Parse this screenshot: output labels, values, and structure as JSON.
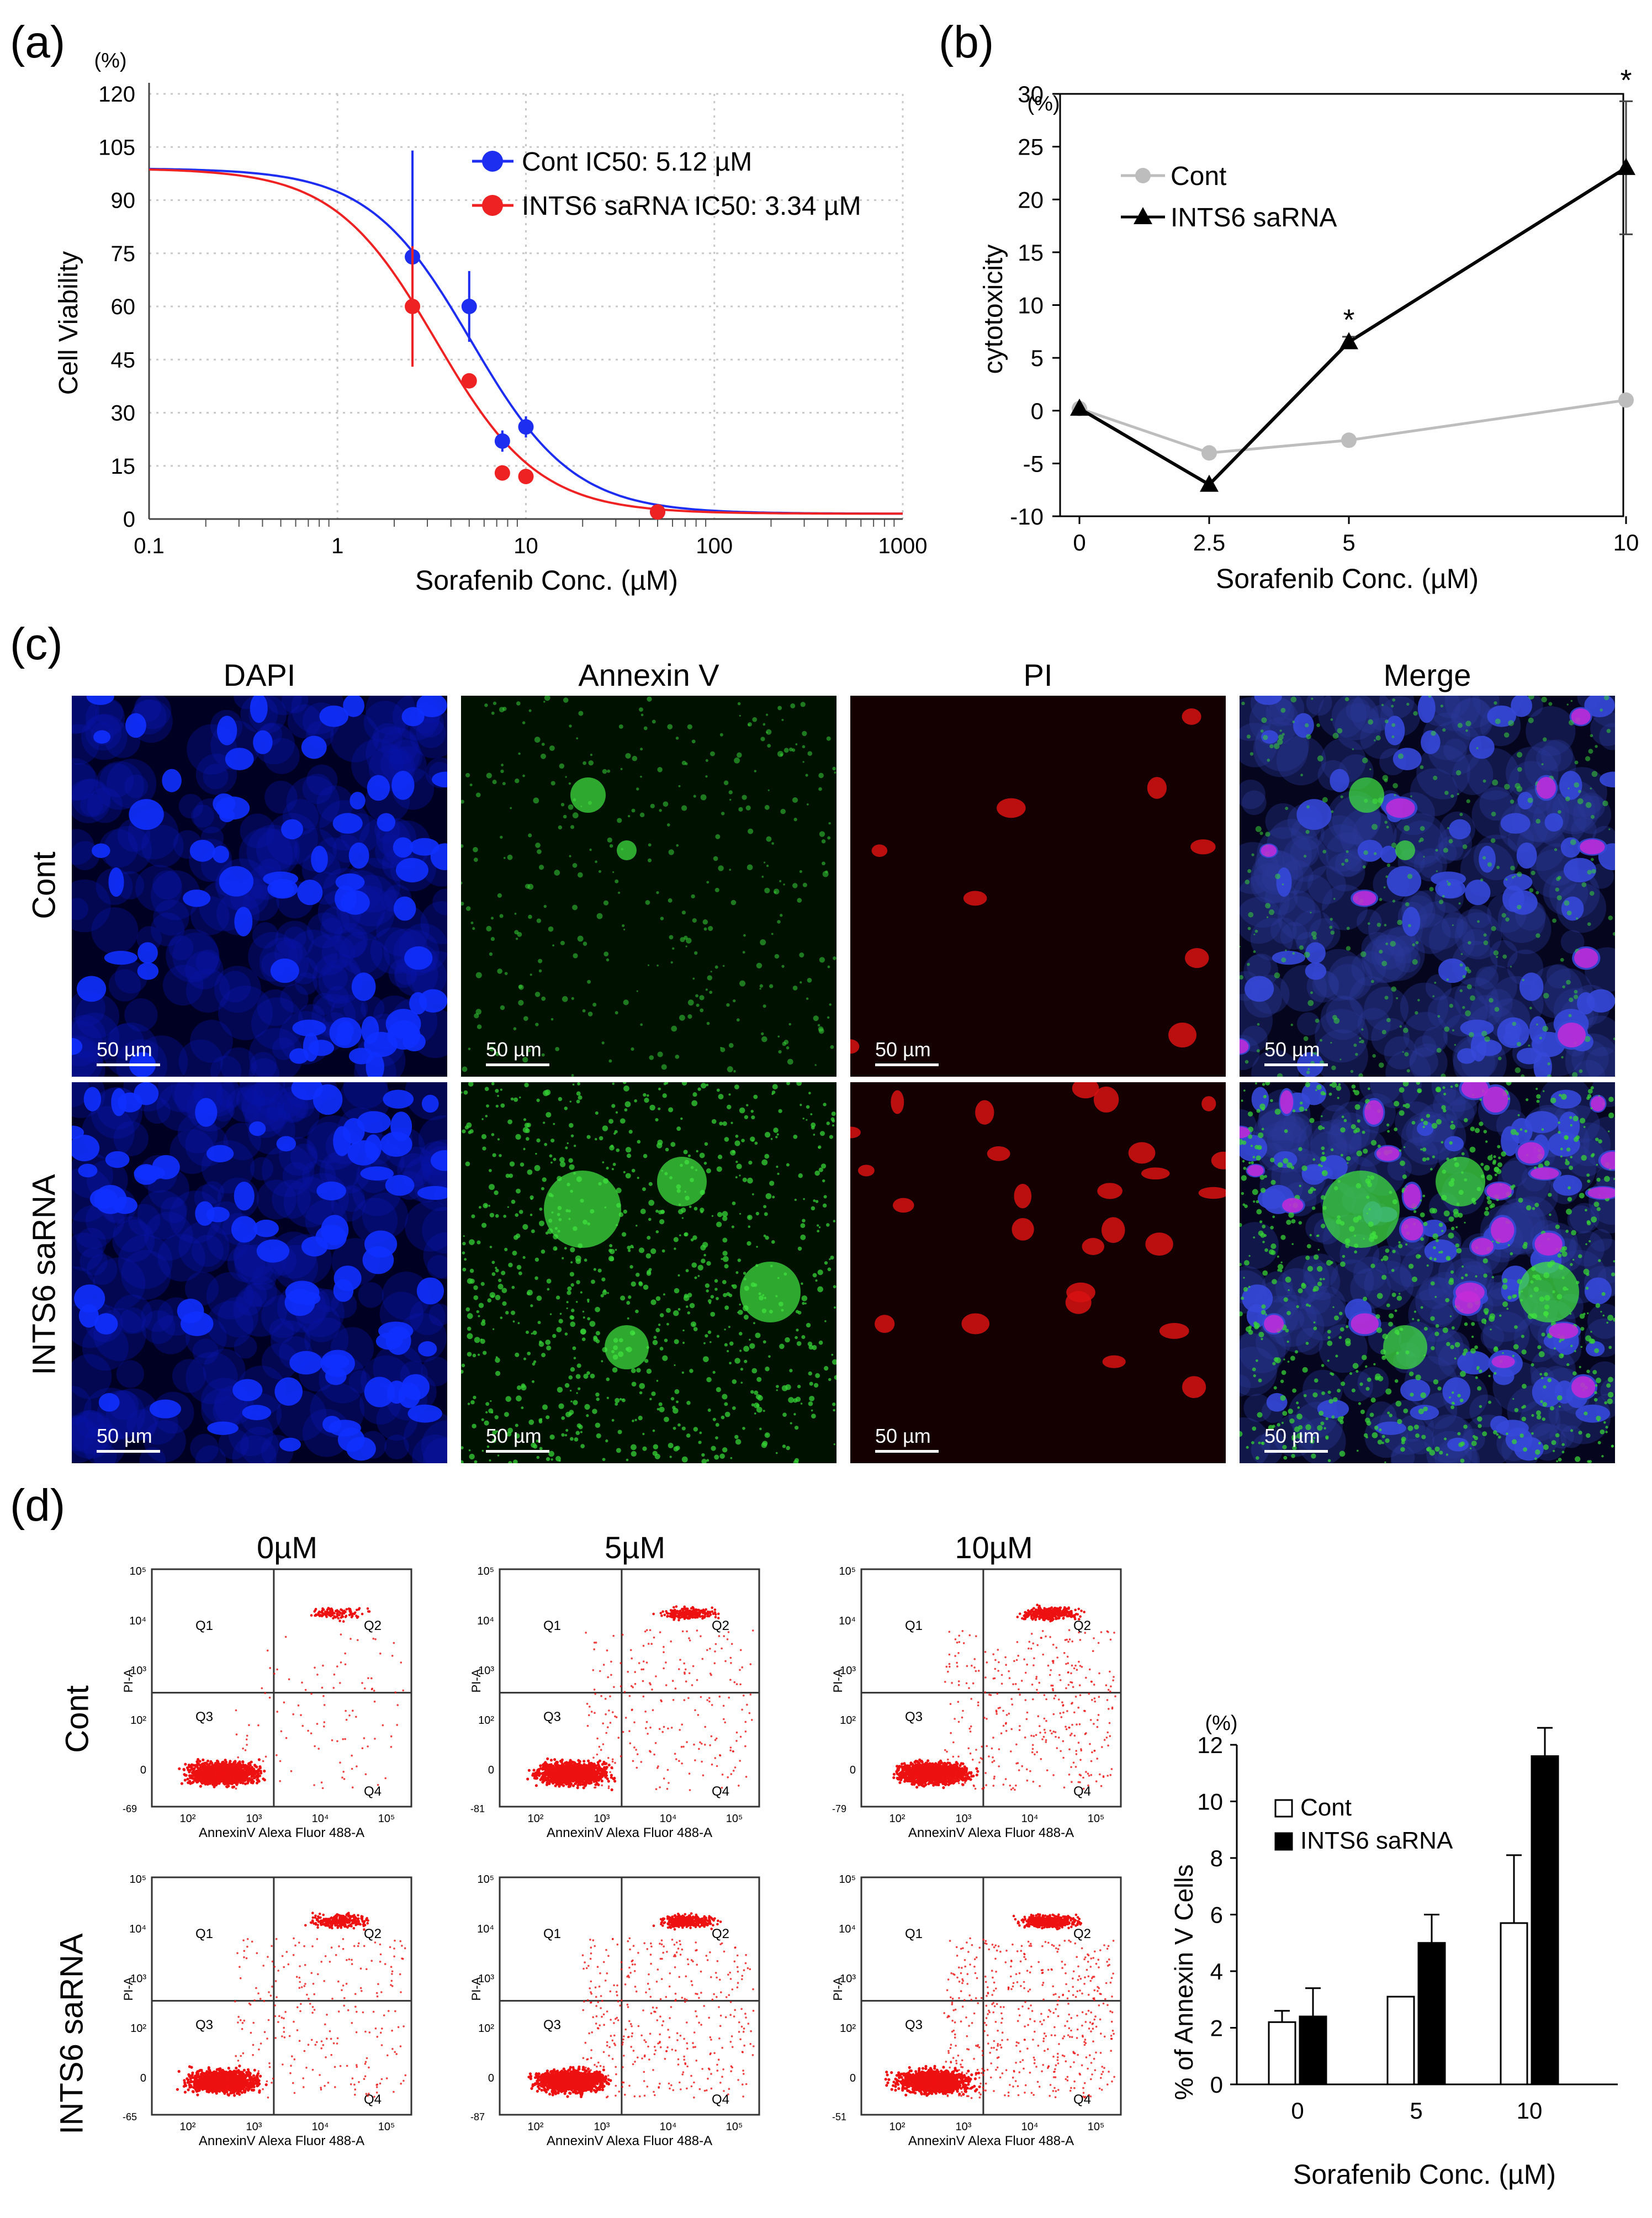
{
  "panels": {
    "a": {
      "label": "(a)",
      "y_unit": "(%)",
      "chart_data": {
        "type": "scatter",
        "title": "",
        "xlabel": "Sorafenib Conc. (µM)",
        "ylabel": "Cell Viability",
        "xscale": "log",
        "xlim": [
          0.1,
          1000
        ],
        "ylim": [
          0,
          120
        ],
        "xticks": [
          "0.1",
          "1",
          "10",
          "100",
          "1000"
        ],
        "yticks": [
          "0",
          "15",
          "30",
          "45",
          "60",
          "75",
          "90",
          "105",
          "120"
        ],
        "series": [
          {
            "name": "Cont",
            "legend": "Cont  IC50: 5.12 µM",
            "color": "#1d2ef0",
            "x": [
              2.5,
              5,
              7.5,
              10,
              50
            ],
            "y": [
              74,
              60,
              22,
              26,
              2
            ],
            "err": [
              30,
              10,
              3,
              3,
              1
            ]
          },
          {
            "name": "INTS6 saRNA",
            "legend": "INTS6 saRNA  IC50: 3.34 µM",
            "color": "#ee2222",
            "x": [
              2.5,
              5,
              7.5,
              10,
              50
            ],
            "y": [
              60,
              39,
              13,
              12,
              2
            ],
            "err": [
              17,
              2,
              1,
              1,
              1
            ]
          }
        ],
        "fits": [
          {
            "name": "Cont",
            "ic50": 5.12,
            "top": 99,
            "bottom": 1.5,
            "hill": 1.6
          },
          {
            "name": "INTS6 saRNA",
            "ic50": 3.34,
            "top": 99,
            "bottom": 1.5,
            "hill": 1.6
          }
        ]
      }
    },
    "b": {
      "label": "(b)",
      "y_unit": "(%)",
      "chart_data": {
        "type": "line",
        "xlabel": "Sorafenib Conc. (µM)",
        "ylabel": "cytotoxicity",
        "ylim": [
          -10,
          30
        ],
        "categories": [
          "0",
          "2.5",
          "5",
          "10"
        ],
        "yticks": [
          "-10",
          "-5",
          "0",
          "5",
          "10",
          "15",
          "20",
          "25",
          "30"
        ],
        "series": [
          {
            "name": "Cont",
            "color": "#bdbdbd",
            "values": [
              0.2,
              -4,
              -2.8,
              1
            ],
            "err": [
              0,
              0,
              0,
              0
            ]
          },
          {
            "name": "INTS6 saRNA",
            "color": "#000000",
            "values": [
              0.2,
              -7,
              6.5,
              23
            ],
            "err": [
              0,
              0,
              0.5,
              6.3
            ]
          }
        ],
        "annotations": [
          "*",
          "*"
        ]
      }
    },
    "c": {
      "label": "(c)",
      "columns": [
        "DAPI",
        "Annexin V",
        "PI",
        "Merge"
      ],
      "rows": [
        "Cont",
        "INTS6 saRNA"
      ],
      "scale_bar": "50 µm"
    },
    "d": {
      "label": "(d)",
      "columns": [
        "0µM",
        "5µM",
        "10µM"
      ],
      "rows": [
        "Cont",
        "INTS6 saRNA"
      ],
      "flow_xlabel": "AnnexinV Alexa Fluor 488-A",
      "flow_ylabel": "PI-A",
      "quadrants": [
        "Q1",
        "Q2",
        "Q3",
        "Q4"
      ],
      "flow_xticks": [
        "10²",
        "10³",
        "10⁴",
        "10⁵"
      ],
      "flow_yticks": [
        "0",
        "10²",
        "10³",
        "10⁴",
        "10⁵"
      ],
      "flow_ymins": [
        [
          "-69",
          "-81",
          "-79"
        ],
        [
          "-65",
          "-87",
          "-51"
        ]
      ],
      "bar_chart": {
        "y_unit": "(%)",
        "chart_data": {
          "type": "bar",
          "xlabel": "Sorafenib Conc. (µM)",
          "ylabel": "% of Annexin V Cells",
          "ylim": [
            0,
            12
          ],
          "categories": [
            "0",
            "5",
            "10"
          ],
          "yticks": [
            "0",
            "2",
            "4",
            "6",
            "8",
            "10",
            "12"
          ],
          "series": [
            {
              "name": "Cont",
              "color": "#ffffff",
              "values": [
                2.2,
                3.1,
                5.7
              ],
              "err": [
                0.4,
                0,
                2.4
              ]
            },
            {
              "name": "INTS6 saRNA",
              "color": "#000000",
              "values": [
                2.4,
                5.0,
                11.6
              ],
              "err": [
                1.0,
                1.0,
                1.0
              ]
            }
          ]
        }
      }
    }
  }
}
